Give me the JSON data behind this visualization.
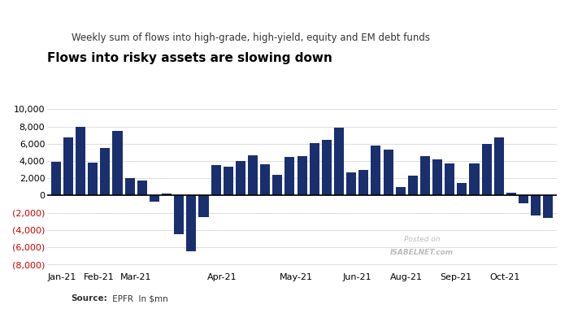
{
  "title": "Flows into risky assets are slowing down",
  "subtitle": "Weekly sum of flows into high-grade, high-yield, equity and EM debt funds",
  "source_bold": "Source:",
  "source_normal": " EPFR  In $mn",
  "bar_color": "#1a2f6e",
  "negative_tick_color": "#cc0000",
  "background_color": "#ffffff",
  "values": [
    3900,
    6700,
    8000,
    3800,
    5500,
    7500,
    2000,
    1700,
    -700,
    200,
    -4500,
    -6500,
    -2500,
    3500,
    3300,
    4000,
    4700,
    3600,
    2400,
    4500,
    4600,
    6100,
    6500,
    7900,
    2700,
    3000,
    5800,
    5300,
    1000,
    2300,
    4600,
    4200,
    3700,
    1500,
    3700,
    6000,
    6700,
    300,
    -900,
    -2300,
    -2600
  ],
  "month_tick_positions": [
    0.5,
    3.5,
    6.5,
    13.5,
    19.5,
    24.5,
    28.5,
    32.5,
    36.5
  ],
  "month_labels": [
    "Jan-21",
    "Feb-21",
    "Mar-21",
    "Apr-21",
    "May-21",
    "Jun-21",
    "Aug-21",
    "Sep-21",
    "Oct-21"
  ],
  "ylim": [
    -8500,
    10500
  ],
  "yticks": [
    -8000,
    -6000,
    -4000,
    -2000,
    0,
    2000,
    4000,
    6000,
    8000,
    10000
  ],
  "watermark_line1": "Posted on",
  "watermark_line2": "ISABELNET.com"
}
